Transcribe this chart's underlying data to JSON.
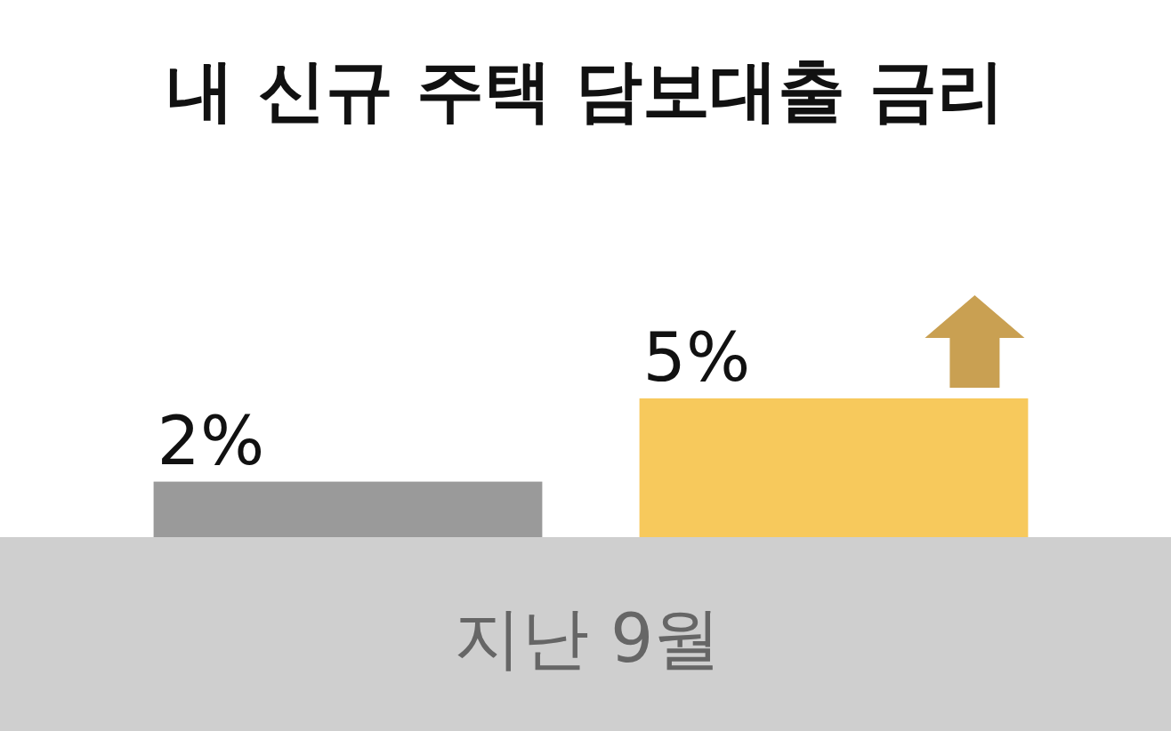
{
  "chart_data": {
    "type": "bar",
    "title": "내 신규 주택 담보대출 금리",
    "xlabel": "지난 9월",
    "categories": [
      null,
      null
    ],
    "values": [
      2,
      5
    ],
    "colors": [
      "#9a9a9a",
      "#f7c95c"
    ],
    "value_labels": [
      "2%",
      "5%"
    ]
  }
}
